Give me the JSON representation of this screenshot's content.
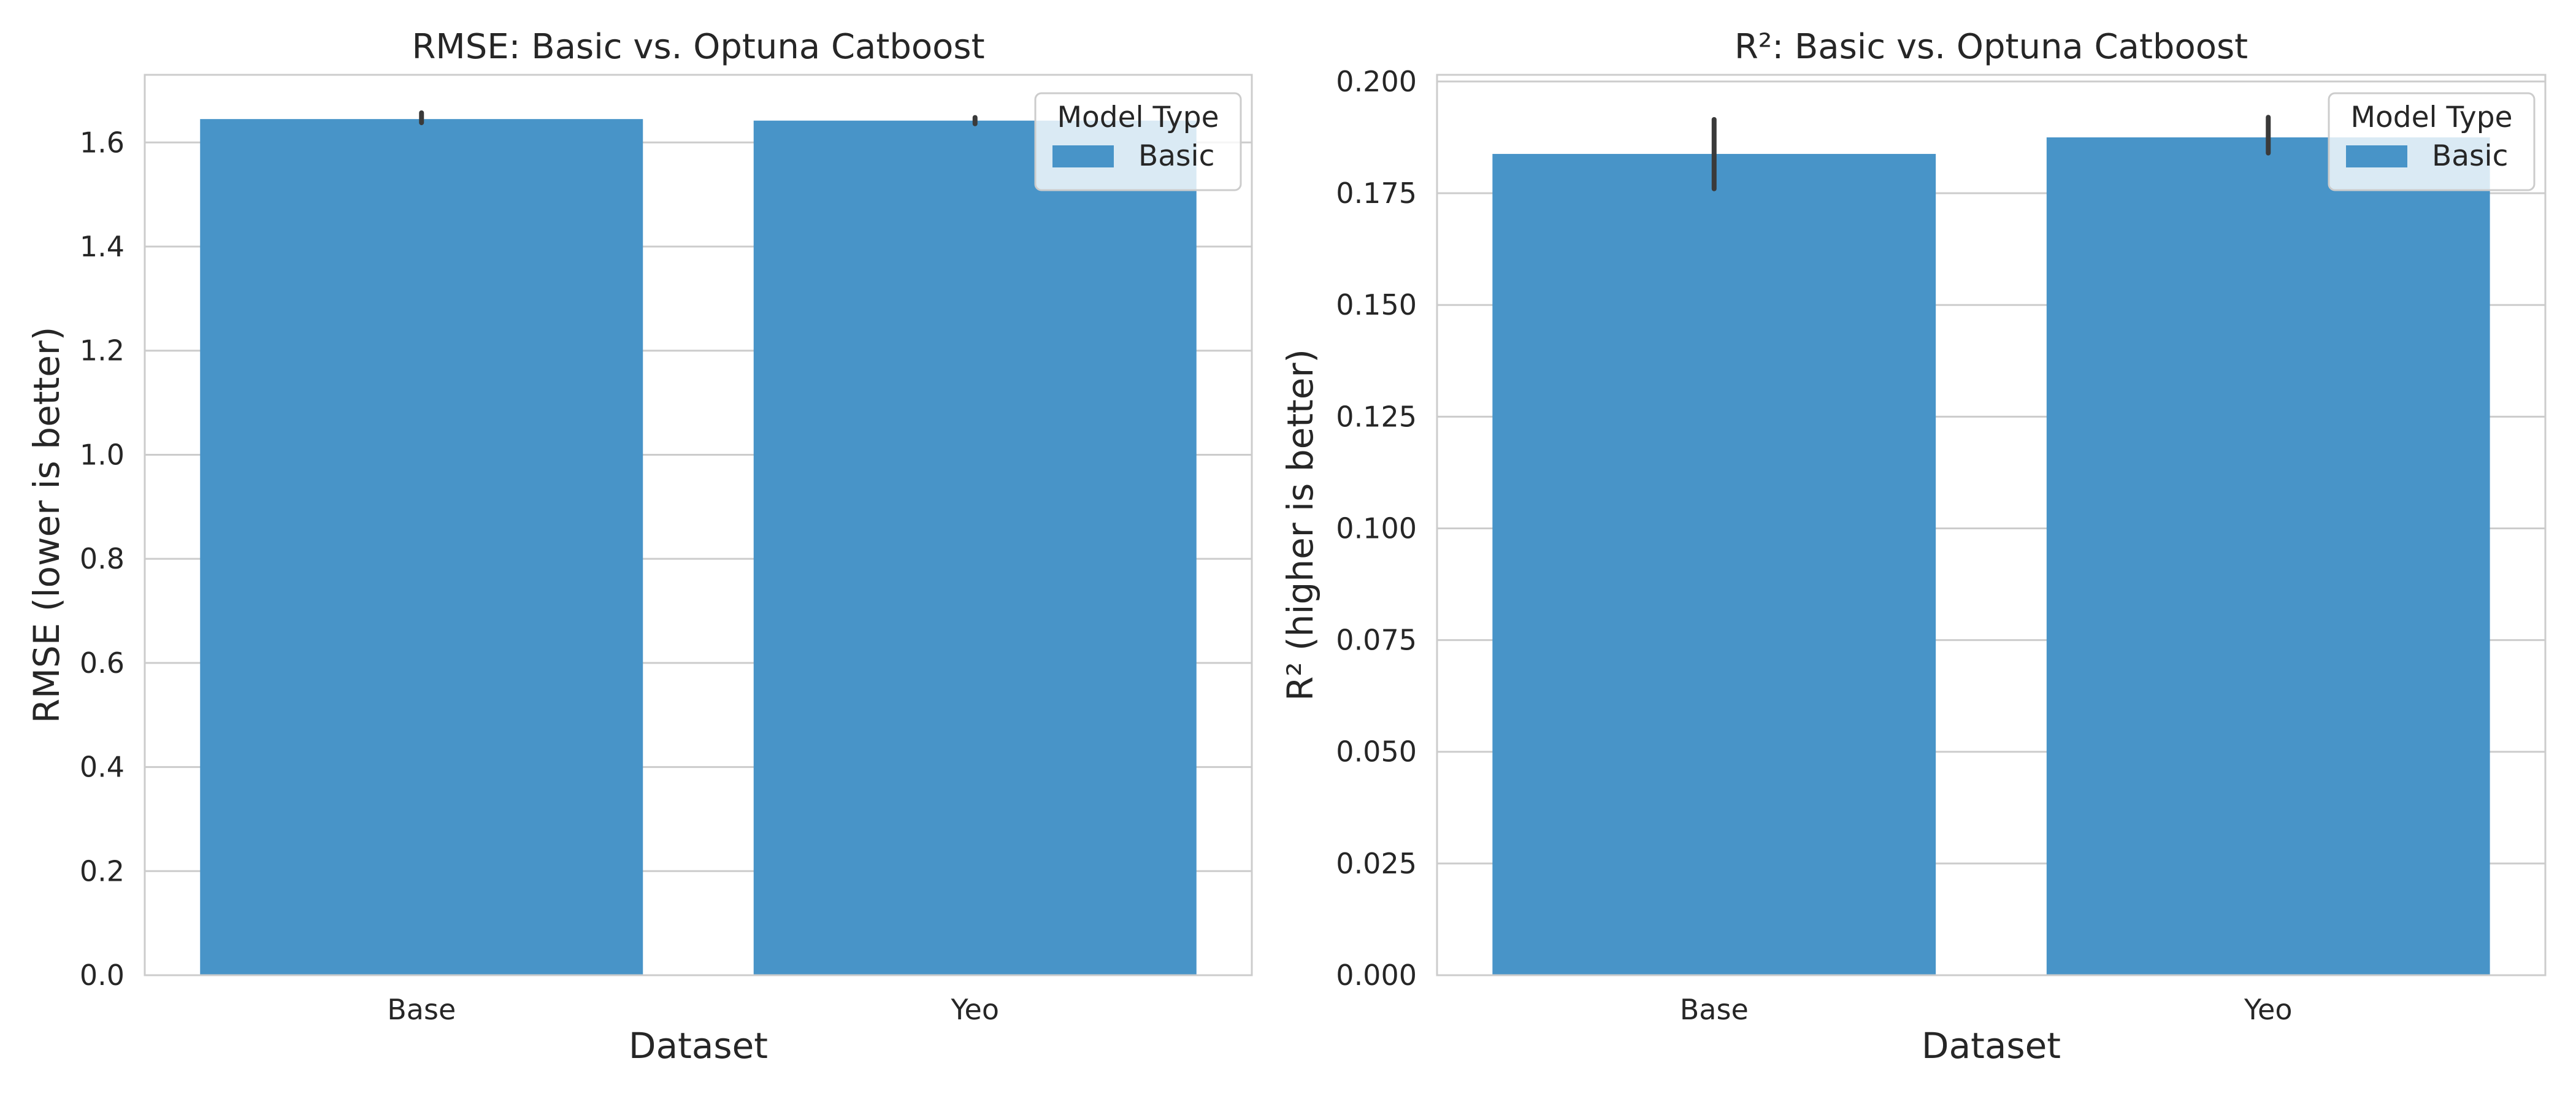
{
  "colors": {
    "bar": "#4894c8",
    "grid": "#cccccc",
    "axes_edge": "#cccccc",
    "error_bar": "#3a3a3a",
    "text": "#262626",
    "background": "#ffffff"
  },
  "chart_data": [
    {
      "type": "bar",
      "title": "RMSE: Basic vs. Optuna Catboost",
      "xlabel": "Dataset",
      "ylabel": "RMSE (lower is better)",
      "categories": [
        "Base",
        "Yeo"
      ],
      "series": [
        {
          "name": "Basic",
          "values": [
            1.645,
            1.642
          ],
          "error_low": [
            1.638,
            1.636
          ],
          "error_high": [
            1.657,
            1.648
          ]
        }
      ],
      "ylim": [
        0,
        1.73
      ],
      "yticks": [
        0.0,
        0.2,
        0.4,
        0.6,
        0.8,
        1.0,
        1.2,
        1.4,
        1.6
      ],
      "ytick_labels": [
        "0.0",
        "0.2",
        "0.4",
        "0.6",
        "0.8",
        "1.0",
        "1.2",
        "1.4",
        "1.6"
      ],
      "grid": true,
      "grid_axis": "y",
      "legend": {
        "title": "Model Type",
        "entries": [
          "Basic"
        ],
        "placement": "top-right"
      }
    },
    {
      "type": "bar",
      "title": "R²: Basic vs. Optuna Catboost",
      "xlabel": "Dataset",
      "ylabel": "R² (higher is better)",
      "categories": [
        "Base",
        "Yeo"
      ],
      "series": [
        {
          "name": "Basic",
          "values": [
            0.1838,
            0.1875
          ],
          "error_low": [
            0.176,
            0.184
          ],
          "error_high": [
            0.1915,
            0.192
          ]
        }
      ],
      "ylim": [
        0,
        0.2015
      ],
      "yticks": [
        0.0,
        0.025,
        0.05,
        0.075,
        0.1,
        0.125,
        0.15,
        0.175,
        0.2
      ],
      "ytick_labels": [
        "0.000",
        "0.025",
        "0.050",
        "0.075",
        "0.100",
        "0.125",
        "0.150",
        "0.175",
        "0.200"
      ],
      "grid": true,
      "grid_axis": "y",
      "legend": {
        "title": "Model Type",
        "entries": [
          "Basic"
        ],
        "placement": "top-right"
      }
    }
  ]
}
